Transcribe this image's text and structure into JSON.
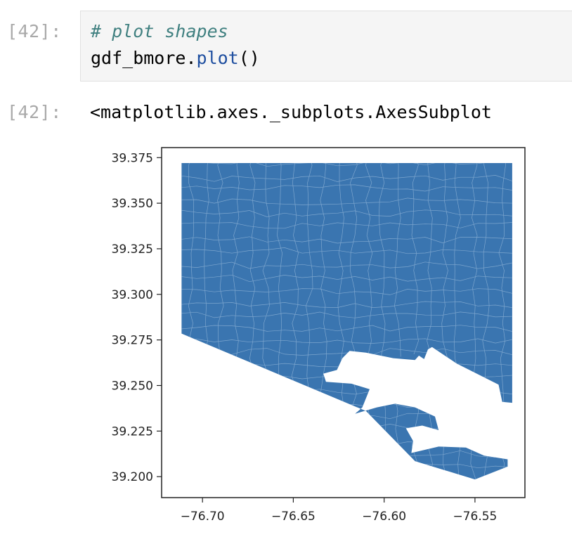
{
  "cell": {
    "input_prompt": "[42]:",
    "output_prompt": "[42]:",
    "code_comment": "# plot shapes",
    "code_object": "gdf_bmore.",
    "code_method": "plot",
    "code_parens": "()",
    "output_text": "<matplotlib.axes._subplots.AxesSubplot"
  },
  "chart_data": {
    "type": "map",
    "x_ticks": [
      "−76.70",
      "−76.65",
      "−76.60",
      "−76.55"
    ],
    "x_tick_values": [
      -76.7,
      -76.65,
      -76.6,
      -76.55
    ],
    "y_ticks": [
      "39.375",
      "39.350",
      "39.325",
      "39.300",
      "39.275",
      "39.250",
      "39.225",
      "39.200"
    ],
    "y_tick_values": [
      39.375,
      39.35,
      39.325,
      39.3,
      39.275,
      39.25,
      39.225,
      39.2
    ],
    "xlim": [
      -76.7225,
      -76.5225
    ],
    "ylim": [
      39.1885,
      39.3805
    ],
    "fill_color": "#3a75b0",
    "boundary_color": "#8fb3d6",
    "outline": [
      [
        -76.7115,
        39.372
      ],
      [
        -76.5295,
        39.372
      ],
      [
        -76.5295,
        39.2405
      ],
      [
        -76.535,
        39.241
      ],
      [
        -76.537,
        39.2505
      ],
      [
        -76.56,
        39.262
      ],
      [
        -76.575,
        39.272
      ],
      [
        -76.578,
        39.2645
      ],
      [
        -76.59,
        39.2725
      ],
      [
        -76.606,
        39.272
      ],
      [
        -76.611,
        39.277
      ],
      [
        -76.607,
        39.281
      ],
      [
        -76.612,
        39.285
      ],
      [
        -76.608,
        39.2838
      ],
      [
        -76.6,
        39.282
      ],
      [
        -76.592,
        39.28
      ],
      [
        -76.58,
        39.275
      ],
      [
        -76.572,
        39.272
      ],
      [
        -76.579,
        39.268
      ],
      [
        -76.595,
        39.265
      ],
      [
        -76.61,
        39.268
      ],
      [
        -76.619,
        39.269
      ],
      [
        -76.623,
        39.265
      ],
      [
        -76.626,
        39.2585
      ],
      [
        -76.6335,
        39.2565
      ],
      [
        -76.632,
        39.252
      ],
      [
        -76.618,
        39.251
      ],
      [
        -76.608,
        39.248
      ],
      [
        -76.612,
        39.238
      ],
      [
        -76.616,
        39.2345
      ],
      [
        -76.604,
        39.238
      ],
      [
        -76.594,
        39.24
      ],
      [
        -76.583,
        39.238
      ],
      [
        -76.572,
        39.233
      ],
      [
        -76.57,
        39.2255
      ],
      [
        -76.579,
        39.228
      ],
      [
        -76.588,
        39.2265
      ],
      [
        -76.584,
        39.2195
      ],
      [
        -76.585,
        39.213
      ],
      [
        -76.57,
        39.2165
      ],
      [
        -76.555,
        39.216
      ],
      [
        -76.545,
        39.2115
      ],
      [
        -76.532,
        39.2095
      ],
      [
        -76.532,
        39.2055
      ],
      [
        -76.55,
        39.1985
      ],
      [
        -76.583,
        39.2085
      ],
      [
        -76.61,
        39.236
      ],
      [
        -76.7115,
        39.2785
      ]
    ],
    "islands": [
      [
        [
          -76.606,
          39.272
        ],
        [
          -76.595,
          39.265
        ],
        [
          -76.583,
          39.264
        ],
        [
          -76.5785,
          39.269
        ],
        [
          -76.588,
          39.2735
        ]
      ]
    ]
  }
}
